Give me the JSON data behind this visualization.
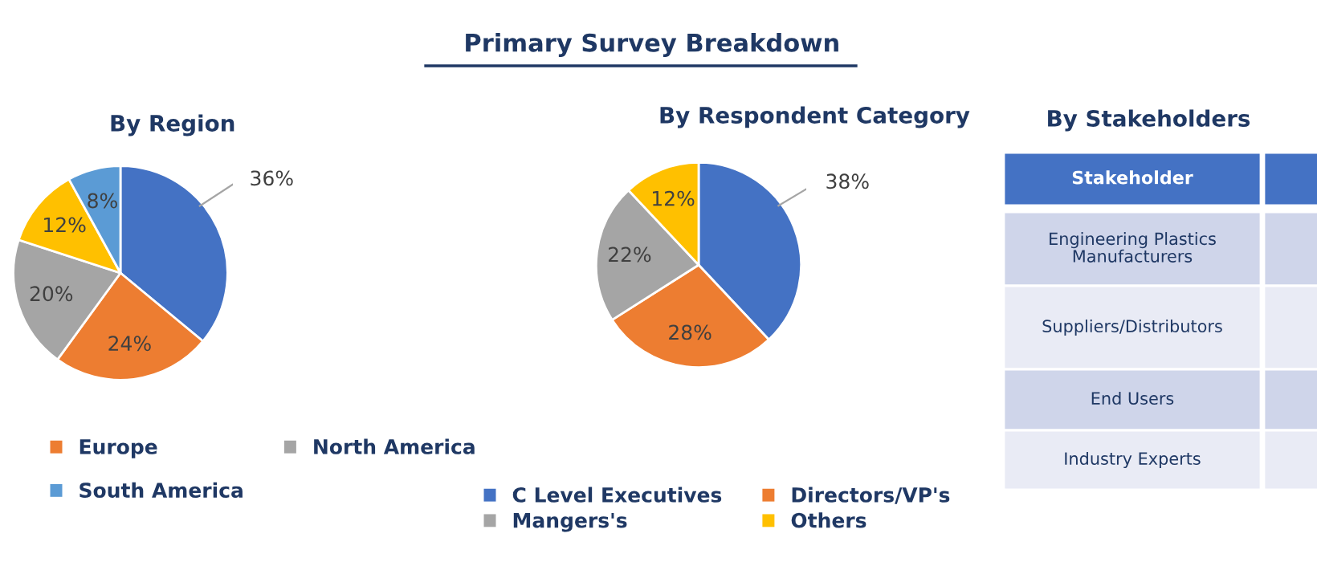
{
  "chart_data": [
    {
      "type": "pie",
      "title": "By Region",
      "annotations": [
        "Primary Survey Breakdown"
      ],
      "categories": [
        null,
        "Europe",
        "North America",
        null,
        "South America"
      ],
      "values": [
        36,
        24,
        20,
        12,
        8
      ],
      "value_labels": [
        "36%",
        "24%",
        "20%",
        "12%",
        "8%"
      ],
      "colors": [
        "#4472c4",
        "#ed7d31",
        "#a5a5a5",
        "#ffc000",
        "#5b9bd5"
      ],
      "legend": "bottom"
    },
    {
      "type": "pie",
      "title": "By Respondent Category",
      "categories": [
        "C Level Executives",
        "Directors/VP's",
        "Mangers's",
        "Others"
      ],
      "values": [
        38,
        28,
        22,
        12
      ],
      "value_labels": [
        "38%",
        "28%",
        "22%",
        "12%"
      ],
      "colors": [
        "#4472c4",
        "#ed7d31",
        "#a5a5a5",
        "#ffc000"
      ],
      "legend": "bottom"
    },
    {
      "type": "other",
      "title": "By Stakeholders",
      "annotations": [
        "Stakeholder",
        "Engineering Plastics\nManufacturers",
        "Suppliers/Distributors",
        "End Users",
        "Industry Experts"
      ]
    }
  ]
}
